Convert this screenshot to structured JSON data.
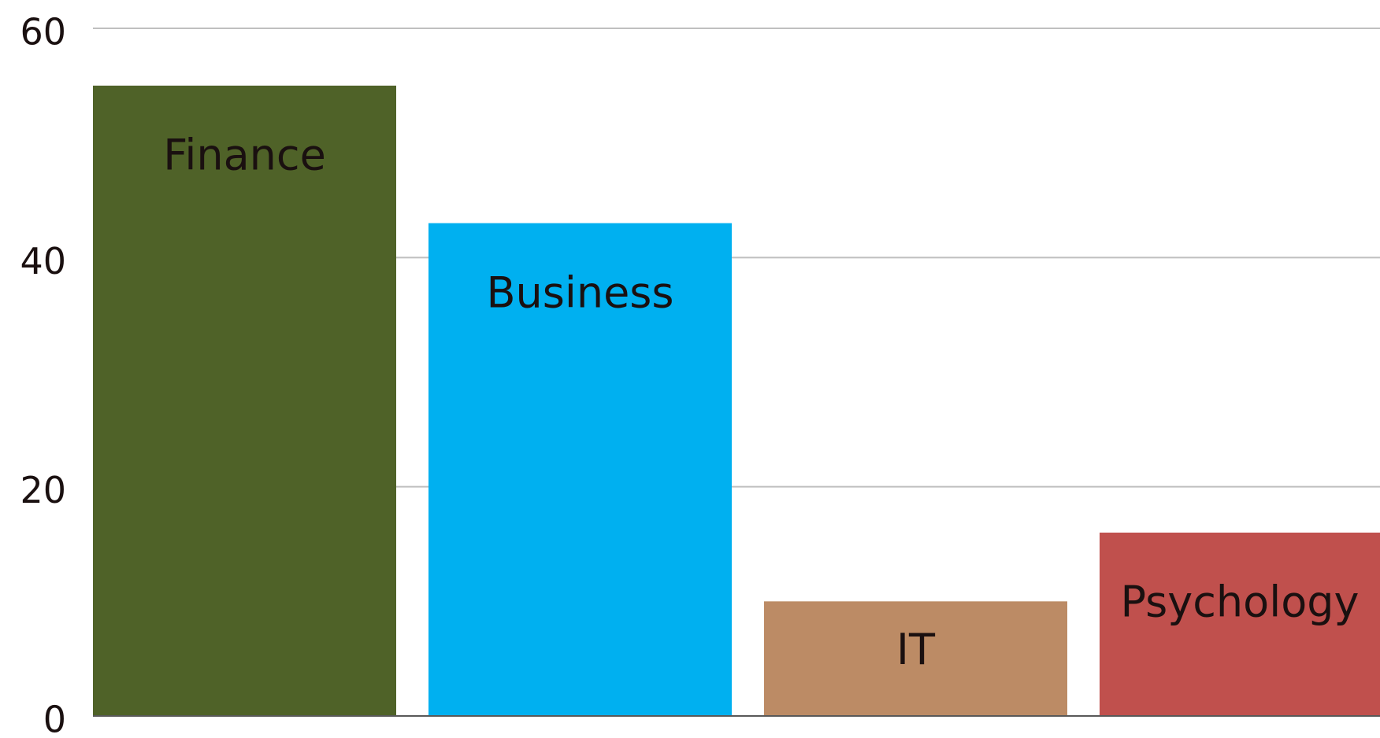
{
  "chart_data": {
    "type": "bar",
    "categories": [
      "Finance",
      "Business",
      "IT",
      "Psychology"
    ],
    "values": [
      55,
      43,
      10,
      16
    ],
    "colors": [
      "#4f6228",
      "#00b0f0",
      "#bc8b65",
      "#c0504d"
    ],
    "ylim": [
      0,
      60
    ],
    "yticks": [
      0,
      20,
      40,
      60
    ],
    "grid": true
  }
}
